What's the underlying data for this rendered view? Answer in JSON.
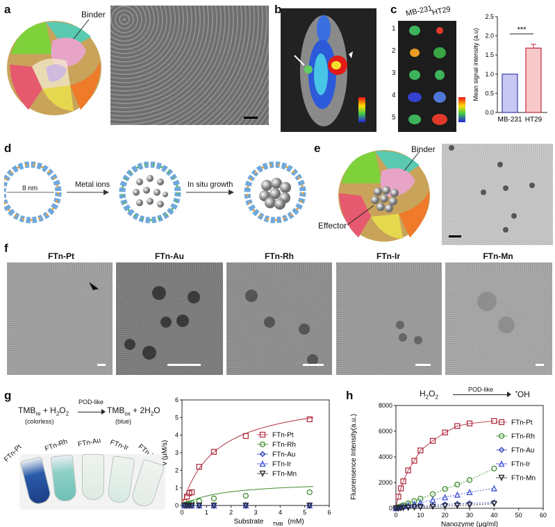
{
  "panels": {
    "a": {
      "letter": "a",
      "binder_label": "Binder"
    },
    "b": {
      "letter": "b"
    },
    "c": {
      "letter": "c",
      "col1": "MB-231",
      "col2": "HT29",
      "rows": [
        "1",
        "2",
        "3",
        "4",
        "5"
      ],
      "bar_chart": {
        "type": "bar",
        "categories": [
          "MB-231",
          "HT29"
        ],
        "values": [
          1.0,
          1.68
        ],
        "errors": [
          0,
          0.1
        ],
        "ylabel": "Mean signal intensity (a.u)",
        "ylim": [
          0,
          2.5
        ],
        "yticks": [
          "0.0",
          "0.5",
          "1.0",
          "1.5",
          "2.0",
          "2.5"
        ],
        "significance": "***",
        "colors": [
          "#c9c8f2",
          "#f7c9c9"
        ],
        "edge_colors": [
          "#3b3bb0",
          "#c0283a"
        ]
      }
    },
    "d": {
      "letter": "d",
      "size_label": "8 nm",
      "step1": "Metal ions",
      "step2": "In situ growth"
    },
    "e": {
      "letter": "e",
      "binder_label": "Binder",
      "effector_label": "Effector"
    },
    "f": {
      "letter": "f",
      "titles": [
        "FTn-Pt",
        "FTn-Au",
        "FTn-Rh",
        "FTn-Ir",
        "FTn-Mn"
      ]
    },
    "g": {
      "letter": "g",
      "eq_left": "TMB",
      "eq_left_sub": "re",
      "eq_h2o2": "+ H",
      "eq_arrow": "POD-like",
      "eq_right": "TMB",
      "eq_right_sub": "ox",
      "eq_right2": "+ 2H",
      "eq_right2_tail": "O",
      "colorless": "(colorless)",
      "blue": "(blue)",
      "tube_labels": [
        "FTn-Pt",
        "FTn-Rh",
        "FTn-Au",
        "FTn-Ir",
        "FTn-Mn"
      ]
    },
    "h": {
      "letter": "h",
      "eq_left": "H",
      "eq_arrow": "POD-like",
      "eq_right": "OH"
    }
  },
  "chart_data": [
    {
      "type": "scatter",
      "panel": "g",
      "xlabel": "Substrate",
      "xlabel_sub": "TMB",
      "xlabel_unit": "(mM)",
      "ylabel": "v (μM/s)",
      "xlim": [
        0,
        6
      ],
      "ylim": [
        0,
        6
      ],
      "xticks": [
        "0",
        "1",
        "2",
        "3",
        "4",
        "5",
        "6"
      ],
      "yticks": [
        "0",
        "1",
        "2",
        "3",
        "4",
        "5",
        "6"
      ],
      "x": [
        0.1,
        0.2,
        0.3,
        0.4,
        0.7,
        1.3,
        2.6,
        5.2
      ],
      "series": [
        {
          "name": "FTn-Pt",
          "color": "#b03040",
          "marker": "square",
          "values": [
            0.2,
            0.5,
            0.7,
            0.75,
            2.2,
            3.05,
            3.95,
            4.9
          ],
          "fit": true
        },
        {
          "name": "FTn-Rh",
          "color": "#3d8a2a",
          "marker": "circle",
          "values": [
            0.04,
            0.08,
            0.11,
            0.14,
            0.25,
            0.4,
            0.55,
            0.75
          ],
          "fit": true
        },
        {
          "name": "FTn-Au",
          "color": "#2b3fb5",
          "marker": "diamond",
          "values": [
            0.0,
            0.0,
            0.0,
            0.0,
            0.0,
            0.0,
            0.0,
            0.0
          ],
          "fit": false
        },
        {
          "name": "FTn-Ir",
          "color": "#3b4fd6",
          "marker": "triangle",
          "values": [
            0.0,
            0.0,
            0.0,
            0.0,
            0.0,
            0.0,
            0.0,
            0.0
          ],
          "fit": false
        },
        {
          "name": "FTn-Mn",
          "color": "#222222",
          "marker": "triangle-down",
          "values": [
            0.0,
            0.0,
            0.0,
            0.0,
            0.0,
            0.0,
            0.0,
            0.0
          ],
          "fit": false
        }
      ]
    },
    {
      "type": "scatter",
      "panel": "h",
      "xlabel": "Nanozyme (μg/ml)",
      "ylabel": "Fluorensence Intensity(a.u.)",
      "xlim": [
        0,
        60
      ],
      "ylim": [
        0,
        8000
      ],
      "xticks": [
        "0",
        "10",
        "20",
        "30",
        "40",
        "50",
        "60"
      ],
      "yticks": [
        "0",
        "2000",
        "4000",
        "6000",
        "8000"
      ],
      "x": [
        0,
        1,
        2,
        3,
        5,
        7.5,
        10,
        15,
        20,
        25,
        30,
        40
      ],
      "series": [
        {
          "name": "FTn-Pt",
          "color": "#b03040",
          "marker": "square",
          "values": [
            0,
            900,
            1550,
            2100,
            2950,
            3700,
            4500,
            5250,
            5900,
            6400,
            6600,
            6800
          ]
        },
        {
          "name": "FTn-Rh",
          "color": "#3d8a2a",
          "marker": "circle",
          "values": [
            0,
            80,
            160,
            230,
            380,
            560,
            750,
            1100,
            1500,
            1850,
            2200,
            3100
          ]
        },
        {
          "name": "FTn-Au",
          "color": "#2b3fb5",
          "marker": "diamond",
          "values": [
            0,
            20,
            40,
            60,
            90,
            130,
            170,
            230,
            300,
            340,
            380,
            450
          ]
        },
        {
          "name": "FTn-Ir",
          "color": "#3b4fd6",
          "marker": "triangle",
          "values": [
            0,
            50,
            100,
            150,
            240,
            330,
            430,
            650,
            850,
            1050,
            1250,
            1550
          ]
        },
        {
          "name": "FTn-Mn",
          "color": "#222222",
          "marker": "triangle-down",
          "values": [
            0,
            10,
            20,
            30,
            50,
            70,
            90,
            130,
            170,
            210,
            250,
            350
          ]
        }
      ]
    }
  ]
}
